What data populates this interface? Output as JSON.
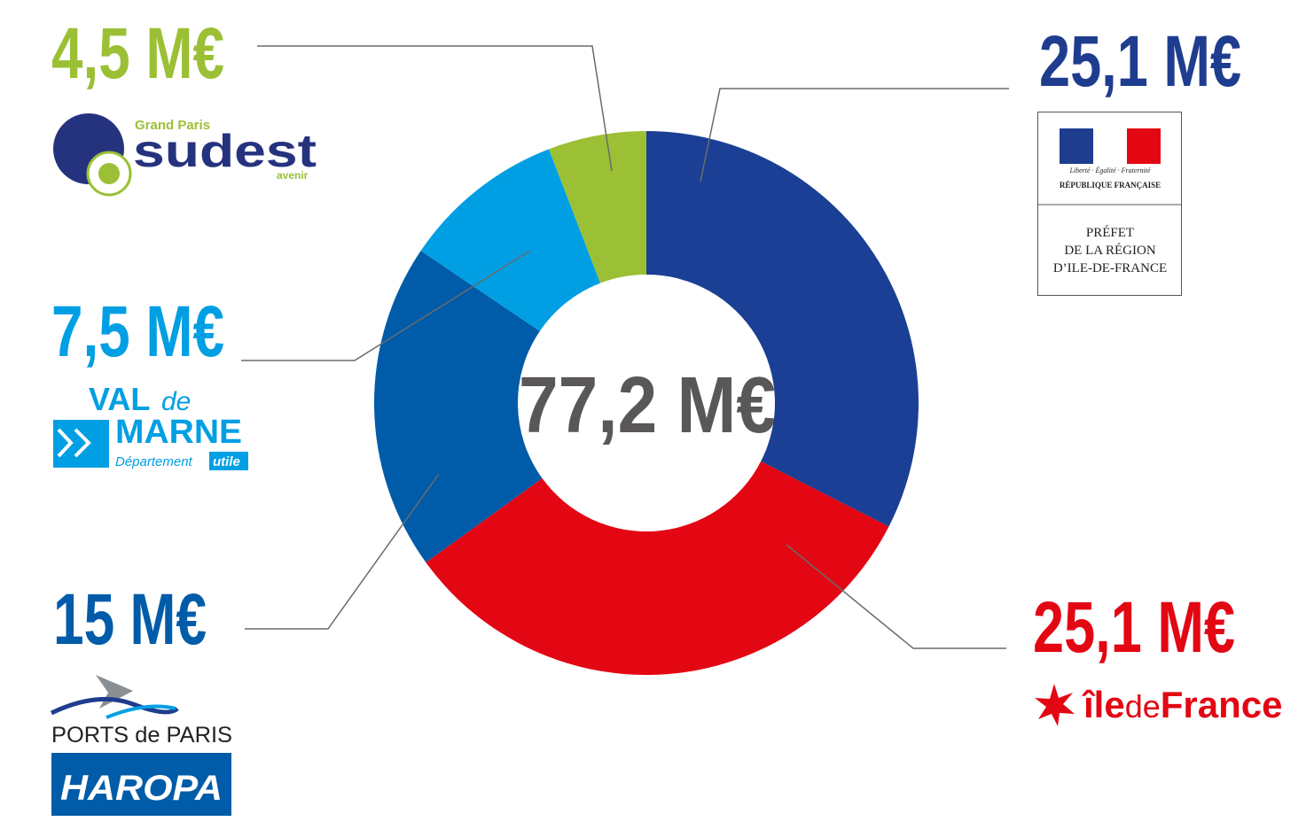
{
  "chart_data": {
    "type": "pie",
    "donut": true,
    "center_label": "77,2 M€",
    "values": [
      25.1,
      25.1,
      15,
      7.5,
      4.5
    ],
    "value_labels": [
      "25,1 M€",
      "25,1 M€",
      "15 M€",
      "7,5 M€",
      "4,5 M€"
    ],
    "colors": [
      "#1b3f94",
      "#e30613",
      "#005ca8",
      "#009fe3",
      "#9bc035"
    ],
    "label_colors": [
      "#1f3d8f",
      "#e30613",
      "#005ca8",
      "#009fe3",
      "#9bc035"
    ],
    "logos": [
      [
        "Liberté · Égalité · Fraternité",
        "RÉPUBLIQUE FRANÇAISE",
        "PRÉFET",
        "DE LA RÉGION",
        "D’ILE-DE-FRANCE"
      ],
      [
        "île",
        "de",
        "France"
      ],
      [
        "PORTS de PARIS",
        "HAROPA"
      ],
      [
        "VAL",
        "de",
        "MARNE",
        "Département",
        "utile"
      ],
      [
        "Grand Paris",
        "sudest",
        "avenir"
      ]
    ]
  }
}
